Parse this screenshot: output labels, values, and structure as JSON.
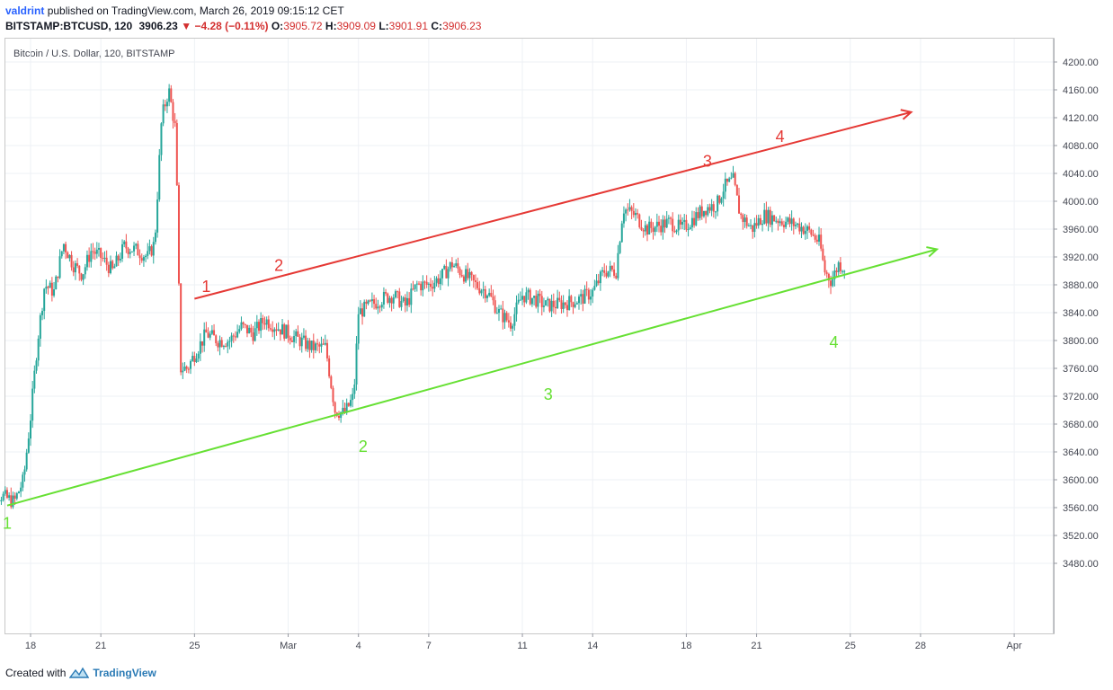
{
  "header": {
    "user": "valdrint",
    "published": "published on TradingView.com, March 26, 2019 09:15:12 CET",
    "symbol": "BITSTAMP:BTCUSD, 120",
    "last": "3906.23",
    "change_arrow": "▼",
    "change": "−4.28 (−0.11%)",
    "o_label": "O:",
    "o": "3905.72",
    "h_label": "H:",
    "h": "3909.09",
    "l_label": "L:",
    "l": "3901.91",
    "c_label": "C:",
    "c": "3906.23"
  },
  "footer": {
    "created": "Created with",
    "brand": "TradingView",
    "logo_icon": "tradingview-logo-icon"
  },
  "colors": {
    "up": "#26a69a",
    "down": "#ef5350",
    "resistance": "#e53935",
    "support": "#66e033",
    "grid": "#eef1f5"
  },
  "chart_data": {
    "type": "candlestick",
    "title": "Bitcoin / U.S. Dollar, 120, BITSTAMP",
    "y_ticks": [
      "4200.00",
      "4160.00",
      "4120.00",
      "4080.00",
      "4040.00",
      "4000.00",
      "3960.00",
      "3920.00",
      "3880.00",
      "3840.00",
      "3800.00",
      "3760.00",
      "3720.00",
      "3680.00",
      "3640.00",
      "3600.00",
      "3560.00",
      "3520.00",
      "3480.00"
    ],
    "x_ticks": [
      "18",
      "21",
      "25",
      "Mar",
      "4",
      "7",
      "11",
      "14",
      "18",
      "21",
      "25",
      "28",
      "Apr"
    ],
    "ylim": [
      3465,
      4215
    ],
    "price_path": [
      [
        16.0,
        3590
      ],
      [
        16.6,
        3580
      ],
      [
        17.3,
        3568
      ],
      [
        17.7,
        3600
      ],
      [
        18.0,
        3690
      ],
      [
        18.3,
        3800
      ],
      [
        18.6,
        3880
      ],
      [
        19.0,
        3870
      ],
      [
        19.4,
        3940
      ],
      [
        19.8,
        3910
      ],
      [
        20.2,
        3895
      ],
      [
        20.6,
        3930
      ],
      [
        21.0,
        3920
      ],
      [
        21.5,
        3900
      ],
      [
        22.0,
        3935
      ],
      [
        22.5,
        3930
      ],
      [
        23.0,
        3920
      ],
      [
        23.3,
        3940
      ],
      [
        23.6,
        4120
      ],
      [
        23.9,
        4160
      ],
      [
        24.2,
        4100
      ],
      [
        24.4,
        3760
      ],
      [
        24.7,
        3760
      ],
      [
        25.0,
        3780
      ],
      [
        25.5,
        3810
      ],
      [
        26.0,
        3800
      ],
      [
        26.5,
        3800
      ],
      [
        27.0,
        3820
      ],
      [
        27.5,
        3810
      ],
      [
        28.0,
        3830
      ],
      [
        28.5,
        3820
      ],
      [
        29.0,
        3810
      ],
      [
        29.5,
        3800
      ],
      [
        30.0,
        3790
      ],
      [
        30.6,
        3790
      ],
      [
        31.0,
        3700
      ],
      [
        31.4,
        3695
      ],
      [
        31.8,
        3720
      ],
      [
        32.0,
        3840
      ],
      [
        32.5,
        3850
      ],
      [
        33.0,
        3860
      ],
      [
        33.5,
        3865
      ],
      [
        34.0,
        3850
      ],
      [
        34.5,
        3880
      ],
      [
        35.0,
        3880
      ],
      [
        35.5,
        3890
      ],
      [
        36.0,
        3910
      ],
      [
        36.5,
        3895
      ],
      [
        37.0,
        3880
      ],
      [
        37.5,
        3870
      ],
      [
        38.0,
        3840
      ],
      [
        38.5,
        3825
      ],
      [
        39.0,
        3865
      ],
      [
        39.5,
        3860
      ],
      [
        40.0,
        3850
      ],
      [
        40.5,
        3852
      ],
      [
        41.0,
        3855
      ],
      [
        41.5,
        3860
      ],
      [
        42.0,
        3870
      ],
      [
        42.5,
        3900
      ],
      [
        43.0,
        3900
      ],
      [
        43.3,
        3990
      ],
      [
        43.8,
        3980
      ],
      [
        44.3,
        3960
      ],
      [
        44.8,
        3965
      ],
      [
        45.3,
        3970
      ],
      [
        45.8,
        3960
      ],
      [
        46.3,
        3975
      ],
      [
        46.8,
        3990
      ],
      [
        47.3,
        3995
      ],
      [
        47.6,
        4020
      ],
      [
        48.0,
        4030
      ],
      [
        48.3,
        3980
      ],
      [
        48.8,
        3960
      ],
      [
        49.3,
        3980
      ],
      [
        49.8,
        3975
      ],
      [
        50.3,
        3970
      ],
      [
        50.8,
        3965
      ],
      [
        51.3,
        3955
      ],
      [
        51.7,
        3940
      ],
      [
        51.9,
        3900
      ],
      [
        52.2,
        3885
      ],
      [
        52.5,
        3910
      ],
      [
        52.8,
        3905
      ]
    ],
    "lines": [
      {
        "name": "resistance",
        "from": [
          "25.0",
          3860
        ],
        "to": [
          "55.6",
          4128
        ]
      },
      {
        "name": "support",
        "from": [
          "17.0",
          3563
        ],
        "to": [
          "56.7",
          3931
        ]
      }
    ],
    "annotations": {
      "red": [
        {
          "label": "1",
          "x": 25.5,
          "y": 3870
        },
        {
          "label": "2",
          "x": 28.6,
          "y": 3900
        },
        {
          "label": "3",
          "x": 46.9,
          "y": 4050
        },
        {
          "label": "4",
          "x": 50.0,
          "y": 4085
        }
      ],
      "green": [
        {
          "label": "1",
          "x": 17.0,
          "y": 3530
        },
        {
          "label": "2",
          "x": 32.2,
          "y": 3640
        },
        {
          "label": "3",
          "x": 40.1,
          "y": 3715
        },
        {
          "label": "4",
          "x": 52.3,
          "y": 3790
        }
      ]
    }
  }
}
